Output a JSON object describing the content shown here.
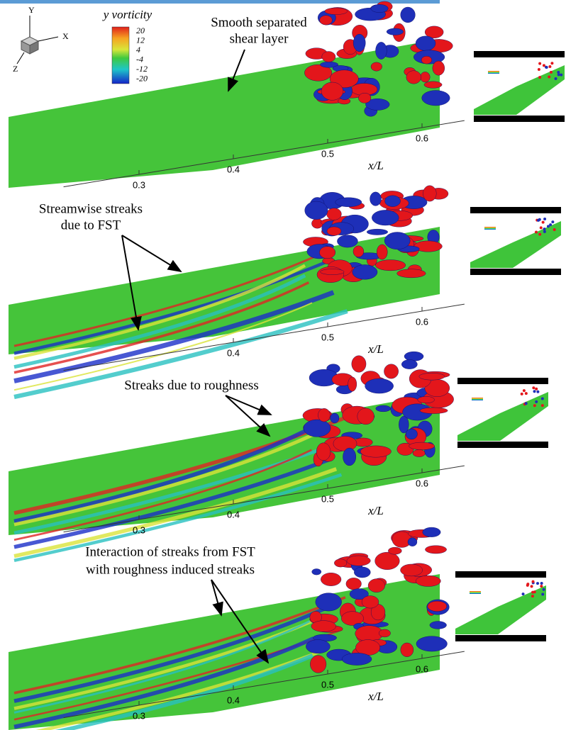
{
  "legend": {
    "title": "y vorticity",
    "levels": [
      20,
      12,
      4,
      -4,
      -12,
      -20
    ]
  },
  "triad": {
    "y": "Y",
    "x": "X",
    "z": "Z"
  },
  "panels": [
    {
      "annotation": [
        "Smooth separated",
        "shear layer"
      ],
      "ticks": [
        0.3,
        0.4,
        0.5,
        0.6
      ],
      "axis_label": "x/L"
    },
    {
      "annotation": [
        "Streamwise streaks",
        "due to FST"
      ],
      "ticks": [
        0.4,
        0.5,
        0.6
      ],
      "axis_label": "x/L"
    },
    {
      "annotation": [
        "Streaks due to roughness"
      ],
      "ticks": [
        0.3,
        0.4,
        0.5,
        0.6
      ],
      "axis_label": "x/L"
    },
    {
      "annotation": [
        "Interaction of streaks from FST",
        "with roughness induced streaks"
      ],
      "ticks": [
        0.3,
        0.4,
        0.5,
        0.6
      ],
      "axis_label": "x/L"
    }
  ]
}
